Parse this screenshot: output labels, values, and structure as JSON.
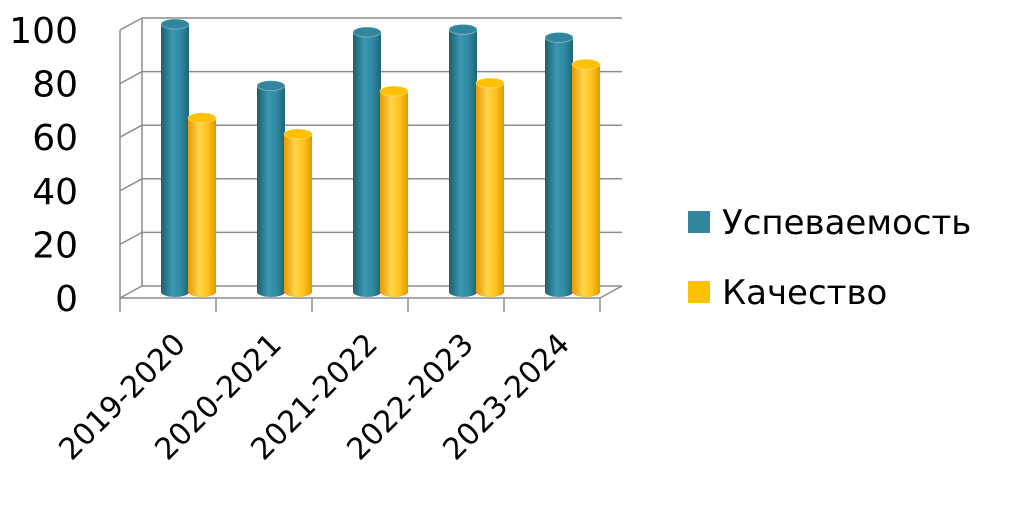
{
  "chart_data": {
    "type": "bar",
    "categories": [
      "2019-2020",
      "2020-2021",
      "2021-2022",
      "2022-2023",
      "2023-2024"
    ],
    "series": [
      {
        "name": "Успеваемость",
        "values": [
          100,
          77,
          97,
          98,
          95
        ],
        "color": "#31859c"
      },
      {
        "name": "Качество",
        "values": [
          65,
          59,
          75,
          78,
          85
        ],
        "color": "#ffc000"
      }
    ],
    "yticks": [
      "0",
      "20",
      "40",
      "60",
      "80",
      "100"
    ],
    "ylim": [
      0,
      100
    ],
    "grid": true,
    "legend_position": "right",
    "style": "3d-cylinder"
  }
}
